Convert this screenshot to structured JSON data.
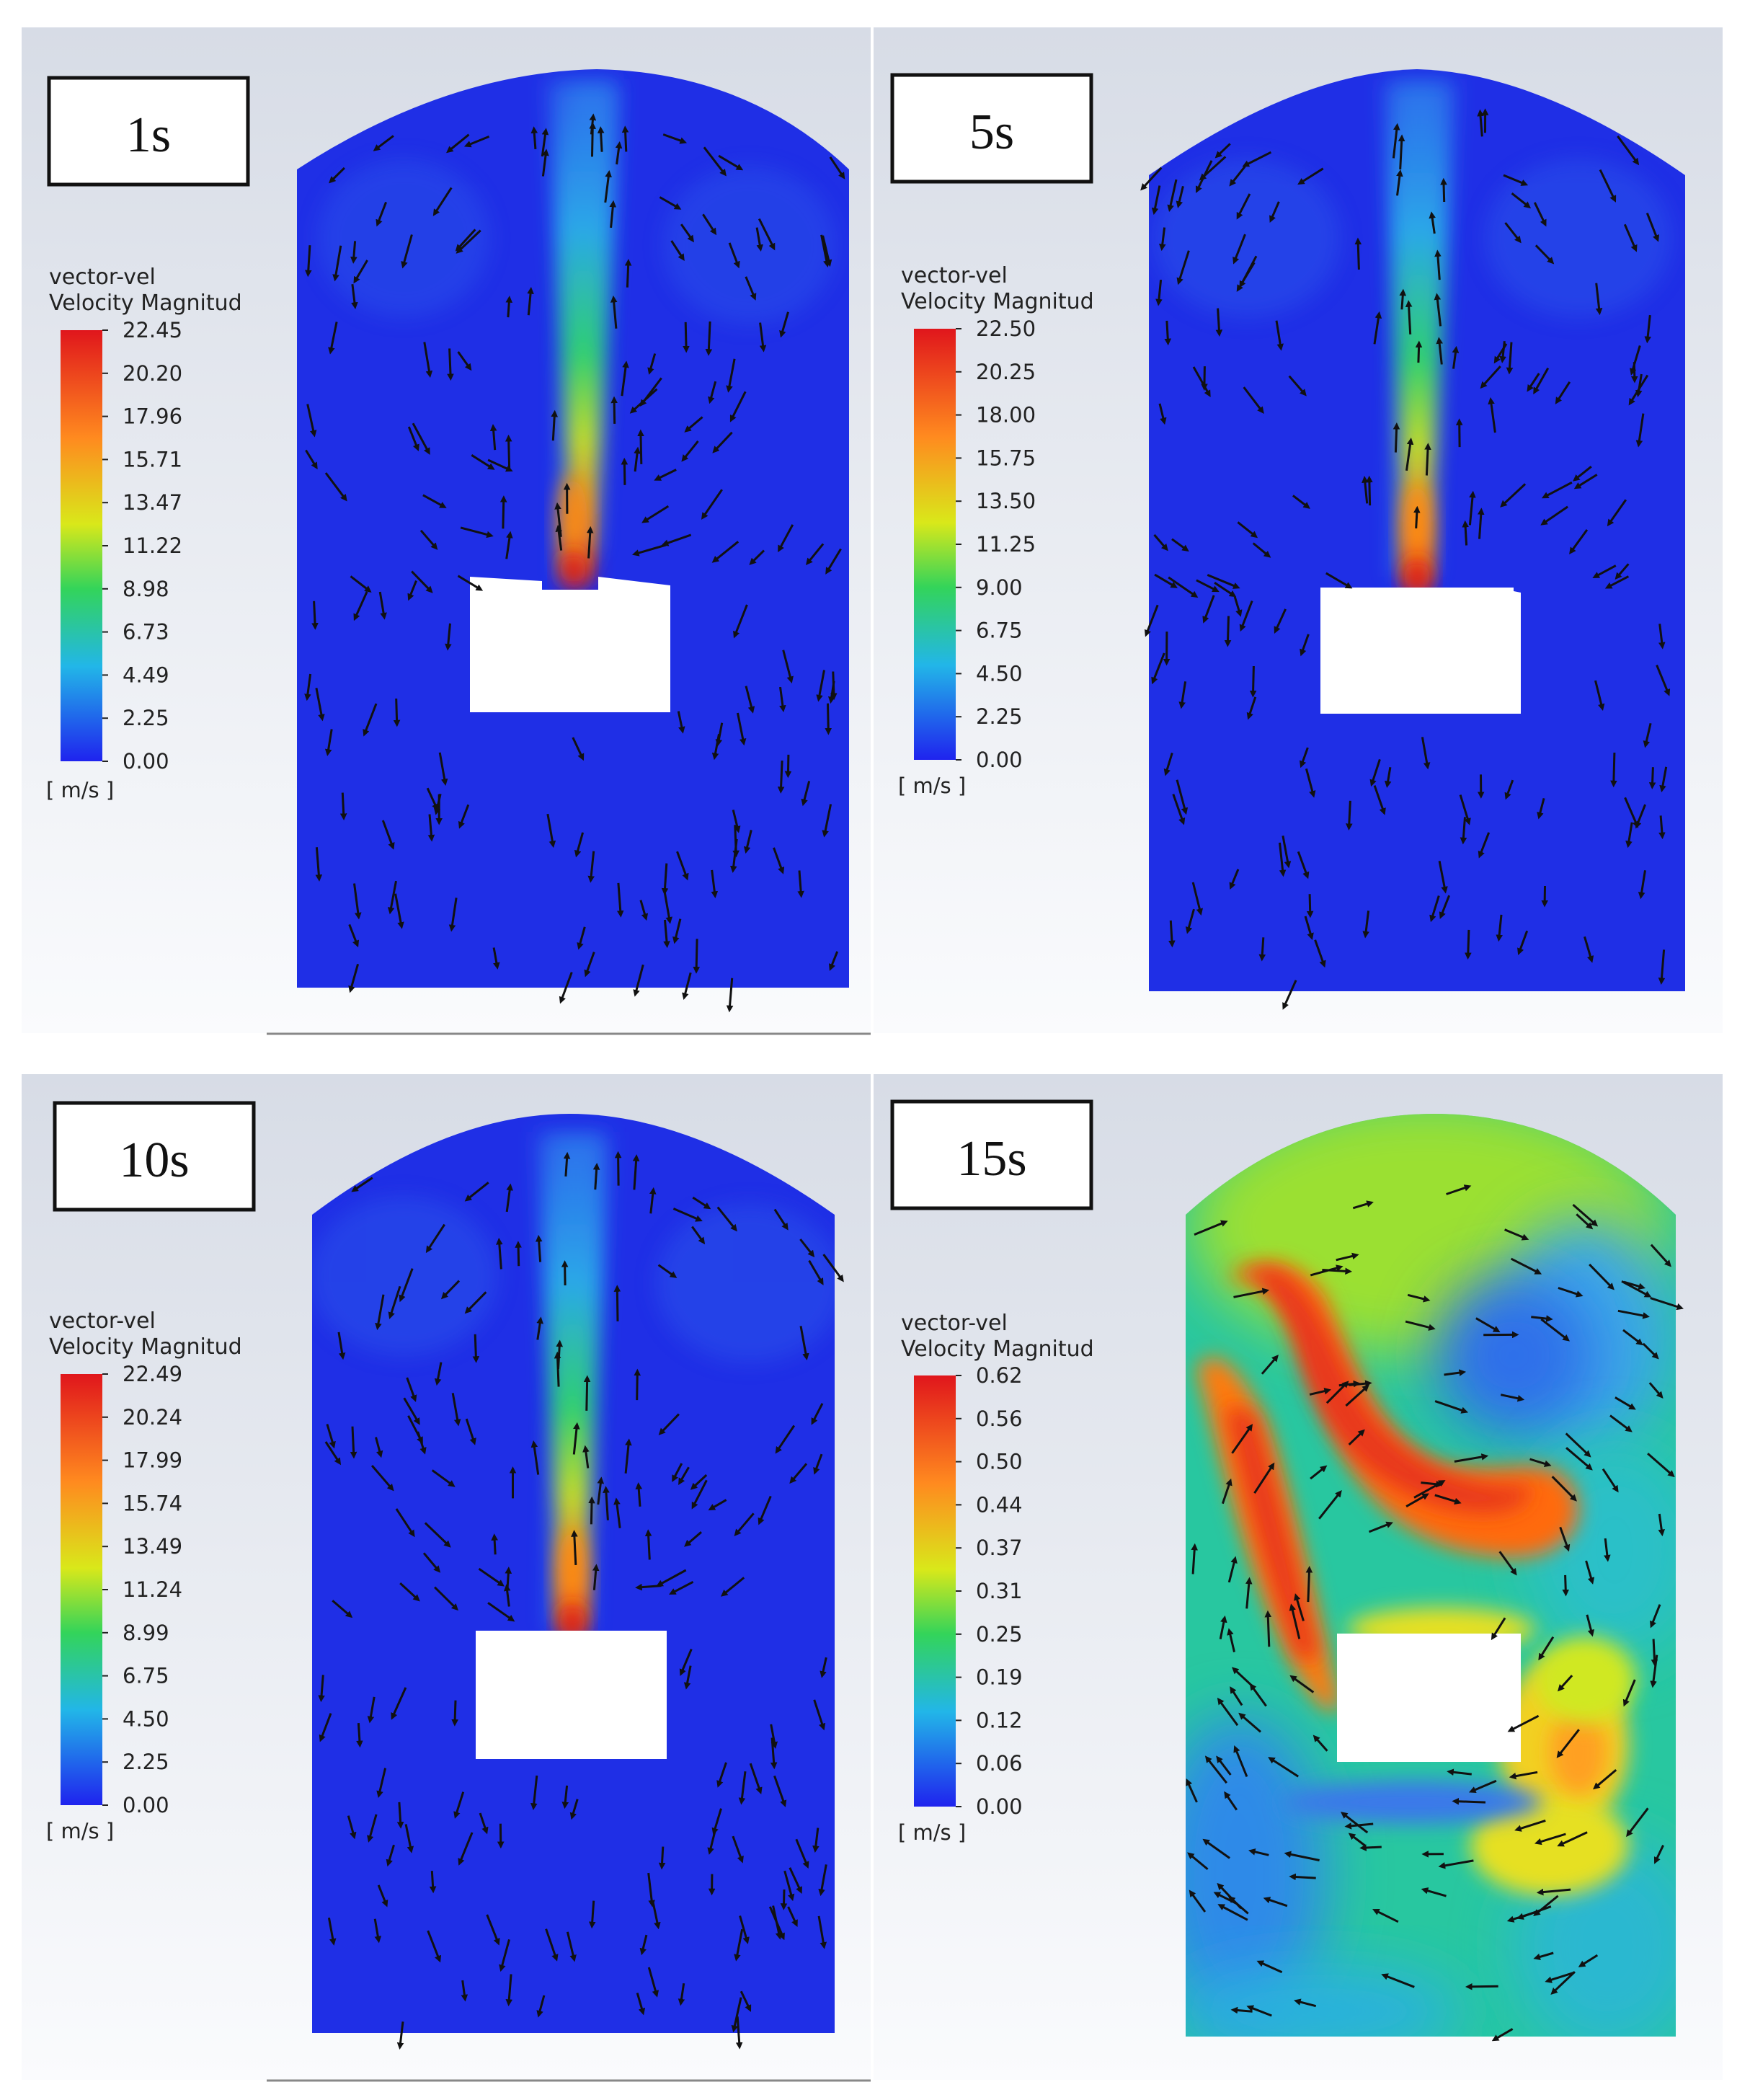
{
  "panels": [
    {
      "time": "1s",
      "legend_title_1": "vector-vel",
      "legend_title_2": "Velocity Magnitud",
      "unit": "[ m/s ]",
      "ticks": [
        "22.45",
        "20.20",
        "17.96",
        "15.71",
        "13.47",
        "11.22",
        "8.98",
        "6.73",
        "4.49",
        "2.25",
        "0.00"
      ],
      "flow": "jet"
    },
    {
      "time": "5s",
      "legend_title_1": "vector-vel",
      "legend_title_2": "Velocity Magnitud",
      "unit": "[ m/s ]",
      "ticks": [
        "22.50",
        "20.25",
        "18.00",
        "15.75",
        "13.50",
        "11.25",
        "9.00",
        "6.75",
        "4.50",
        "2.25",
        "0.00"
      ],
      "flow": "jet"
    },
    {
      "time": "10s",
      "legend_title_1": "vector-vel",
      "legend_title_2": "Velocity Magnitud",
      "unit": "[ m/s ]",
      "ticks": [
        "22.49",
        "20.24",
        "17.99",
        "15.74",
        "13.49",
        "11.24",
        "8.99",
        "6.75",
        "4.50",
        "2.25",
        "0.00"
      ],
      "flow": "jet"
    },
    {
      "time": "15s",
      "legend_title_1": "vector-vel",
      "legend_title_2": "Velocity Magnitud",
      "unit": "[ m/s ]",
      "ticks": [
        "0.62",
        "0.56",
        "0.50",
        "0.44",
        "0.37",
        "0.31",
        "0.25",
        "0.19",
        "0.12",
        "0.06",
        "0.00"
      ],
      "flow": "swirl"
    }
  ],
  "colormap": [
    "#ff0000",
    "#ff8c00",
    "#ffff00",
    "#00ff00",
    "#00c8ff",
    "#0000ff"
  ]
}
